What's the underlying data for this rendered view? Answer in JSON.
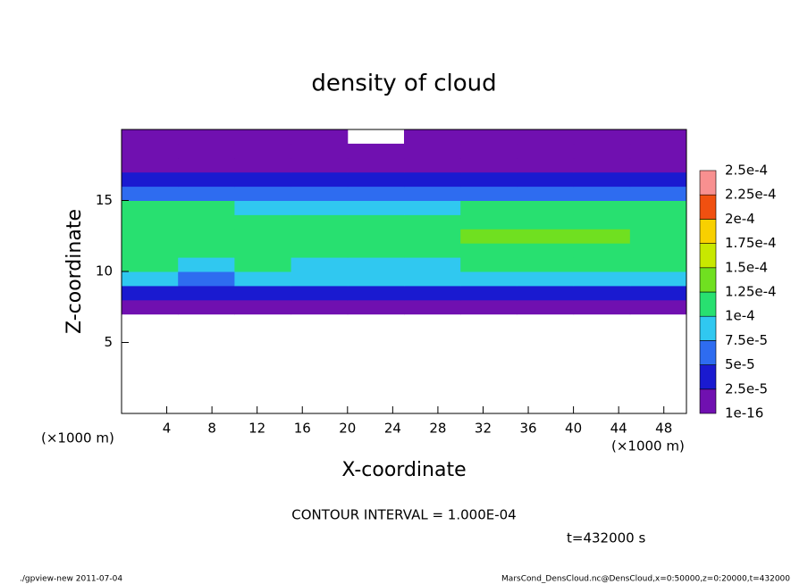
{
  "chart_data": {
    "type": "heatmap",
    "title": "density of cloud",
    "xlabel": "X-coordinate",
    "ylabel": "Z-coordinate",
    "xunit": "(×1000 m)",
    "yunit": "(×1000 m)",
    "annotation": "CONTOUR INTERVAL = 1.000E-04",
    "time": "t=432000 s",
    "footer_left": "./gpview-new  2011-07-04",
    "footer_right": "MarsCond_DensCloud.nc@DensCloud,x=0:50000,z=0:20000,t=432000",
    "xlim": [
      0,
      50
    ],
    "ylim": [
      0,
      20
    ],
    "xticks": [
      4,
      8,
      12,
      16,
      20,
      24,
      28,
      32,
      36,
      40,
      44,
      48
    ],
    "yticks": [
      5,
      10,
      15
    ],
    "x": [
      2.5,
      7.5,
      12.5,
      17.5,
      22.5,
      27.5,
      32.5,
      37.5,
      42.5,
      47.5
    ],
    "z": [
      7.5,
      8.5,
      9.5,
      10.5,
      11.5,
      12.5,
      13.5,
      14.5,
      15.5,
      16.5,
      17.5,
      18.5,
      19.5
    ],
    "values": [
      [
        2e-05,
        1.5e-05,
        2e-05,
        2e-05,
        2e-05,
        2e-05,
        2e-05,
        2e-05,
        2e-05,
        2e-05
      ],
      [
        4.5e-05,
        3e-05,
        4.5e-05,
        4.5e-05,
        4.5e-05,
        4.5e-05,
        4.5e-05,
        4.5e-05,
        4.5e-05,
        4.5e-05
      ],
      [
        8e-05,
        6e-05,
        8e-05,
        8e-05,
        7.5e-05,
        8e-05,
        8e-05,
        8e-05,
        8e-05,
        8e-05
      ],
      [
        0.000105,
        9e-05,
        0.000105,
        9e-05,
        9e-05,
        9e-05,
        0.000105,
        0.000105,
        0.000105,
        0.000105
      ],
      [
        0.000115,
        0.00011,
        0.00011,
        0.000105,
        0.000105,
        0.000105,
        0.000115,
        0.00012,
        0.000115,
        0.000115
      ],
      [
        0.00012,
        0.00012,
        0.00011,
        0.000105,
        0.000105,
        0.00011,
        0.000125,
        0.000125,
        0.000125,
        0.00012
      ],
      [
        0.000115,
        0.000115,
        0.00011,
        0.000105,
        0.000105,
        0.00011,
        0.00012,
        0.00012,
        0.000115,
        0.000115
      ],
      [
        0.000105,
        0.000105,
        9e-05,
        8e-05,
        8e-05,
        9e-05,
        0.000105,
        0.000105,
        0.000105,
        0.000105
      ],
      [
        7e-05,
        7e-05,
        6e-05,
        6e-05,
        6e-05,
        6e-05,
        7e-05,
        7e-05,
        7e-05,
        7e-05
      ],
      [
        4e-05,
        4e-05,
        4e-05,
        3.5e-05,
        3.5e-05,
        4e-05,
        4e-05,
        4e-05,
        4e-05,
        4e-05
      ],
      [
        2e-05,
        2e-05,
        2e-05,
        1.5e-05,
        1e-05,
        2e-05,
        2e-05,
        2e-05,
        2e-05,
        2e-05
      ],
      [
        1e-05,
        1e-05,
        1e-05,
        5e-06,
        5e-06,
        1e-05,
        1e-05,
        1e-05,
        1e-05,
        1e-05
      ],
      [
        5e-06,
        5e-06,
        5e-06,
        3e-06,
        null,
        5e-06,
        5e-06,
        5e-06,
        5e-06,
        5e-06
      ]
    ],
    "levels": [
      1e-16,
      {
        "value": 2.5e-05,
        "label": "2.5e-5"
      },
      {
        "value": 5e-05,
        "label": "5e-5"
      },
      {
        "value": 7.5e-05,
        "label": "7.5e-5"
      },
      {
        "value": 0.0001,
        "label": "1e-4"
      },
      {
        "value": 0.000125,
        "label": "1.25e-4"
      },
      {
        "value": 0.00015,
        "label": "1.5e-4"
      },
      {
        "value": 0.000175,
        "label": "1.75e-4"
      },
      {
        "value": 0.0002,
        "label": "2e-4"
      },
      {
        "value": 0.000225,
        "label": "2.25e-4"
      },
      {
        "value": 0.00025,
        "label": "2.5e-4"
      }
    ],
    "colors": [
      "#7010b0",
      "#1a1ad0",
      "#2e6cf0",
      "#30c8f0",
      "#28e070",
      "#70e020",
      "#c8e800",
      "#f8d000",
      "#f05010",
      "#f89090"
    ]
  }
}
